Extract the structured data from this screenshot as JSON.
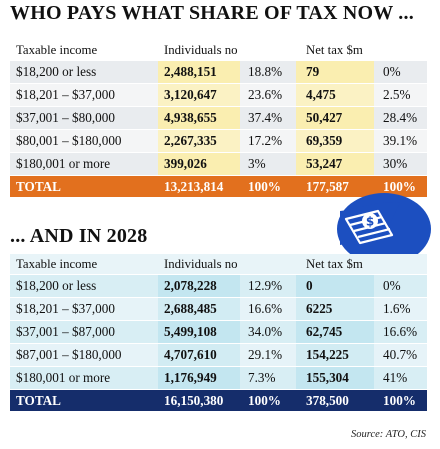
{
  "now": {
    "heading": "WHO PAYS WHAT SHARE OF TAX NOW ...",
    "columns": [
      "Taxable income",
      "Individuals no",
      "Net tax $m"
    ],
    "rows": [
      {
        "income": "$18,200 or less",
        "individuals": "2,488,151",
        "ind_share": "18.8%",
        "net_tax": "79",
        "tax_share": "0%"
      },
      {
        "income": "$18,201 – $37,000",
        "individuals": "3,120,647",
        "ind_share": "23.6%",
        "net_tax": "4,475",
        "tax_share": "2.5%"
      },
      {
        "income": "$37,001 – $80,000",
        "individuals": "4,938,655",
        "ind_share": "37.4%",
        "net_tax": "50,427",
        "tax_share": "28.4%"
      },
      {
        "income": "$80,001 – $180,000",
        "individuals": "2,267,335",
        "ind_share": "17.2%",
        "net_tax": "69,359",
        "tax_share": "39.1%"
      },
      {
        "income": "$180,001 or more",
        "individuals": "399,026",
        "ind_share": "3%",
        "net_tax": "53,247",
        "tax_share": "30%"
      }
    ],
    "total": {
      "label": "TOTAL",
      "individuals": "13,213,814",
      "ind_share": "100%",
      "net_tax": "177,587",
      "tax_share": "100%"
    },
    "colors": {
      "total_bar": "#e2701e",
      "highlight": "#faeeb0"
    }
  },
  "future": {
    "heading": "... AND IN 2028",
    "columns": [
      "Taxable income",
      "Individuals no",
      "Net tax $m"
    ],
    "rows": [
      {
        "income": "$18,200 or less",
        "individuals": "2,078,228",
        "ind_share": "12.9%",
        "net_tax": "0",
        "tax_share": "0%"
      },
      {
        "income": "$18,201 – $37,000",
        "individuals": "2,688,485",
        "ind_share": "16.6%",
        "net_tax": "6225",
        "tax_share": "1.6%"
      },
      {
        "income": "$37,001 – $87,000",
        "individuals": "5,499,108",
        "ind_share": "34.0%",
        "net_tax": "62,745",
        "tax_share": "16.6%"
      },
      {
        "income": "$87,001 – $180,000",
        "individuals": "4,707,610",
        "ind_share": "29.1%",
        "net_tax": "154,225",
        "tax_share": "40.7%"
      },
      {
        "income": "$180,001 or more",
        "individuals": "1,176,949",
        "ind_share": "7.3%",
        "net_tax": "155,304",
        "tax_share": "41%"
      }
    ],
    "total": {
      "label": "TOTAL",
      "individuals": "16,150,380",
      "ind_share": "100%",
      "net_tax": "378,500",
      "tax_share": "100%"
    },
    "colors": {
      "total_bar": "#152d6b",
      "highlight": "#c3e6f0"
    }
  },
  "source": "Source: ATO, CIS",
  "emblem": {
    "icon": "money-bills-dollar-icon",
    "color": "#1c4fc0"
  }
}
